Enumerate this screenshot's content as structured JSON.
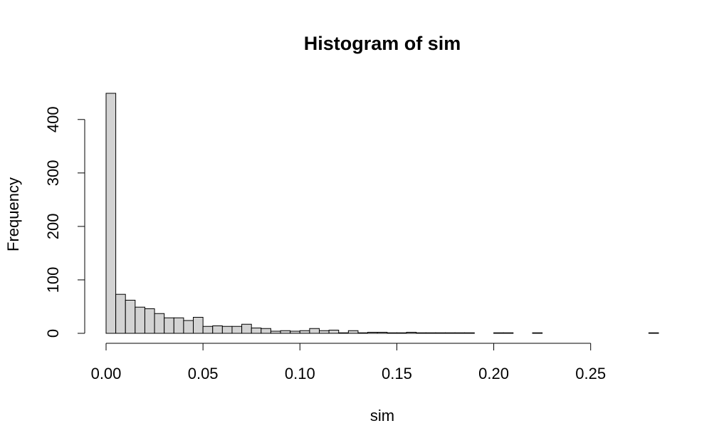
{
  "chart_data": {
    "type": "bar",
    "title": "Histogram of sim",
    "xlabel": "sim",
    "ylabel": "Frequency",
    "bin_width": 0.005,
    "x_start": 0.0,
    "counts": [
      449,
      73,
      62,
      49,
      46,
      37,
      29,
      29,
      24,
      30,
      13,
      14,
      13,
      13,
      17,
      10,
      9,
      4,
      5,
      4,
      5,
      9,
      5,
      6,
      1,
      5,
      1,
      2,
      2,
      1,
      1,
      2,
      1,
      1,
      1,
      1,
      1,
      1,
      0,
      0,
      1,
      1,
      0,
      0,
      1,
      0,
      0,
      0,
      0,
      0,
      0,
      0,
      0,
      0,
      0,
      0,
      1
    ],
    "xlim": [
      0.0,
      0.285
    ],
    "ylim": [
      0,
      449
    ],
    "x_ticks": [
      0.0,
      0.05,
      0.1,
      0.15,
      0.2,
      0.25
    ],
    "x_tick_labels": [
      "0.00",
      "0.05",
      "0.10",
      "0.15",
      "0.20",
      "0.25"
    ],
    "y_ticks": [
      0,
      100,
      200,
      300,
      400
    ],
    "y_tick_labels": [
      "0",
      "100",
      "200",
      "300",
      "400"
    ],
    "colors": {
      "bar_fill": "#d3d3d3",
      "bar_stroke": "#000000",
      "axis": "#000000"
    }
  }
}
